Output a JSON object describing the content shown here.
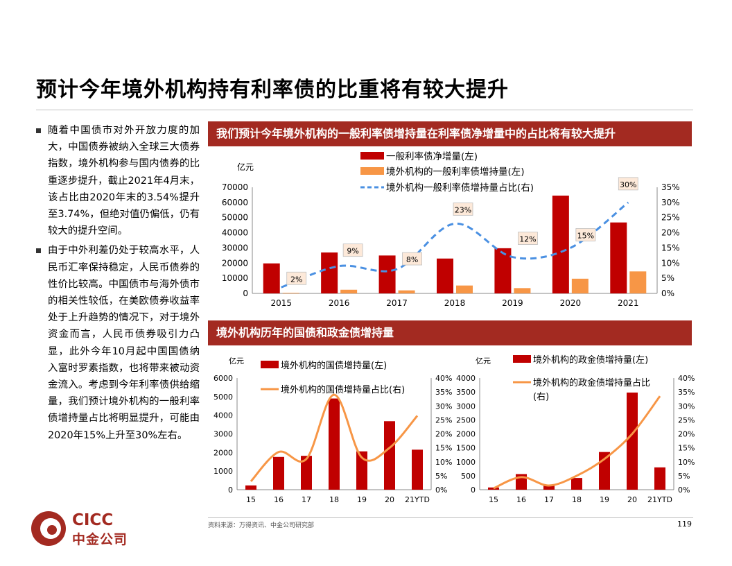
{
  "page": {
    "title": "预计今年境外机构持有利率债的比重将有较大提升",
    "bullets": [
      "随着中国债市对外开放力度的加大，中国债券被纳入全球三大债券指数，境外机构参与国内债券的比重逐步提升，截止2021年4月末，该占比由2020年末的3.54%提升至3.74%，但绝对值仍偏低，仍有较大的提升空间。",
      "由于中外利差仍处于较高水平，人民币汇率保持稳定，人民币债券的性价比较高。中国债市与海外债市的相关性较低，在美欧债券收益率处于上升趋势的情况下，对于境外资金而言，人民币债券吸引力凸显，此外今年10月起中国国债纳入富时罗素指数，也将带来被动资金流入。考虑到今年利率债供给缩量，我们预计境外机构的一般利率债增持量占比将明显提升，可能由2020年15%上升至30%左右。"
    ],
    "band1": "我们预计今年境外机构的一般利率债增持量在利率债净增量中的占比将有较大提升",
    "band2": "境外机构历年的国债和政金债增持量",
    "source": "资料来源：万得资讯、中金公司研究部",
    "page_number": "119",
    "logo": {
      "en": "CICC",
      "cn": "中金公司"
    }
  },
  "colors": {
    "dark_red": "#c00000",
    "orange": "#f79646",
    "blue": "#4a90e2",
    "band": "#a32a21",
    "label_bg": "#fde9d9"
  },
  "chart_data": [
    {
      "type": "bar",
      "title": "我们预计今年境外机构的一般利率债增持量在利率债净增量中的占比将有较大提升",
      "categories": [
        "2015",
        "2016",
        "2017",
        "2018",
        "2019",
        "2020",
        "2021"
      ],
      "ylabel": "亿元",
      "ylim": [
        0,
        70000
      ],
      "yticks": [
        "0",
        "10000",
        "20000",
        "30000",
        "40000",
        "50000",
        "60000",
        "70000"
      ],
      "y2lim": [
        0,
        35
      ],
      "y2ticks": [
        "0%",
        "5%",
        "10%",
        "15%",
        "20%",
        "25%",
        "30%",
        "35%"
      ],
      "series": [
        {
          "name": "一般利率债净增量(左)",
          "type": "bar",
          "axis": "left",
          "values": [
            19800,
            27000,
            25000,
            23000,
            29800,
            64500,
            46800
          ]
        },
        {
          "name": "境外机构的一般利率债增持量(左)",
          "type": "bar",
          "axis": "left",
          "values": [
            400,
            2400,
            2000,
            5200,
            3500,
            9700,
            14500
          ]
        },
        {
          "name": "境外机构一般利率债增持量占比(右)",
          "type": "line",
          "axis": "right",
          "values": [
            2,
            9,
            8,
            23,
            12,
            15,
            30
          ]
        }
      ],
      "data_labels": [
        "2%",
        "9%",
        "8%",
        "23%",
        "12%",
        "15%",
        "30%"
      ],
      "legend": "top-center"
    },
    {
      "type": "bar",
      "title": "",
      "categories": [
        "15",
        "16",
        "17",
        "18",
        "19",
        "20",
        "21YTD"
      ],
      "ylabel": "亿元",
      "ylim": [
        0,
        6000
      ],
      "yticks": [
        "0",
        "1000",
        "2000",
        "3000",
        "4000",
        "5000",
        "6000"
      ],
      "y2lim": [
        0,
        40
      ],
      "y2ticks": [
        "0%",
        "5%",
        "10%",
        "15%",
        "20%",
        "25%",
        "30%",
        "35%",
        "40%"
      ],
      "series": [
        {
          "name": "境外机构的国债增持量(左)",
          "type": "bar",
          "axis": "left",
          "values": [
            230,
            1760,
            1820,
            4900,
            2060,
            3680,
            2150
          ]
        },
        {
          "name": "境外机构的国债增持量占比(右)",
          "type": "line",
          "axis": "right",
          "values": [
            3,
            13.5,
            11,
            34,
            11.5,
            15,
            26.5
          ]
        }
      ],
      "legend": "top-center"
    },
    {
      "type": "bar",
      "title": "",
      "categories": [
        "15",
        "16",
        "17",
        "18",
        "19",
        "20",
        "21YTD"
      ],
      "ylabel": "亿元",
      "ylim": [
        0,
        4000
      ],
      "yticks": [
        "0",
        "500",
        "1000",
        "1500",
        "2000",
        "2500",
        "3000",
        "3500",
        "4000"
      ],
      "y2lim": [
        0,
        40
      ],
      "y2ticks": [
        "0%",
        "5%",
        "10%",
        "15%",
        "20%",
        "25%",
        "30%",
        "35%",
        "40%"
      ],
      "series": [
        {
          "name": "境外机构的政金债增持量(左)",
          "type": "bar",
          "axis": "left",
          "values": [
            80,
            560,
            140,
            420,
            1350,
            3480,
            800
          ]
        },
        {
          "name": "境外机构的政金债增持量占比",
          "suffix": "(右)",
          "type": "line",
          "axis": "right",
          "values": [
            0.5,
            4.5,
            1.5,
            5,
            11,
            20,
            33.5
          ]
        }
      ],
      "legend": "top-center"
    }
  ]
}
